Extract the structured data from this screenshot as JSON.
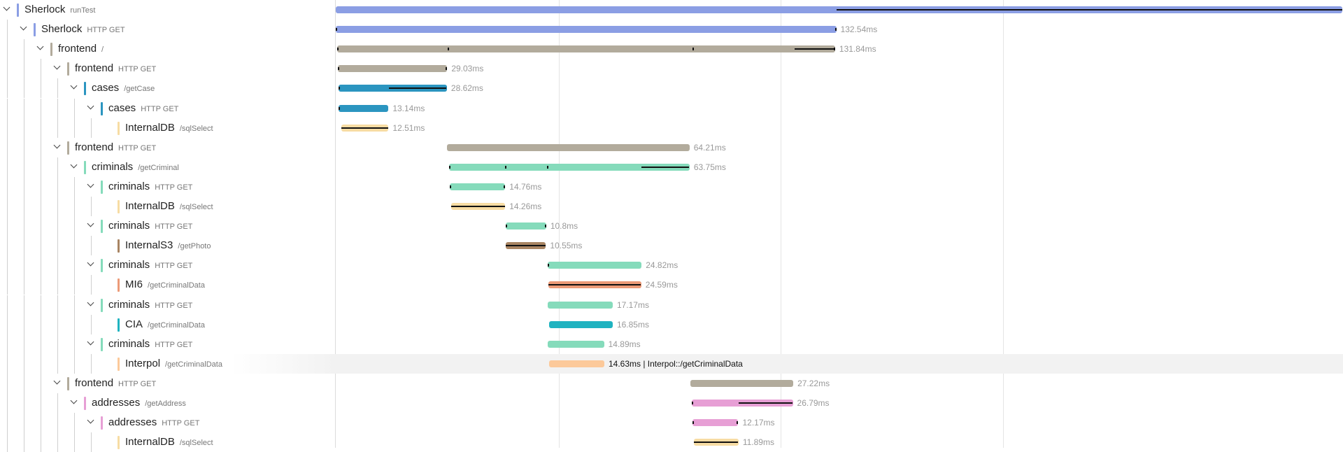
{
  "timeline": {
    "total_ms": 163.73,
    "gridlines_ms": [
      36.15,
      72.29,
      108.43
    ]
  },
  "spans": [
    {
      "service": "Sherlock",
      "operation": "runTest",
      "depth": 0,
      "color": "#8b9ee4",
      "start_ms": 0,
      "duration_ms": 163.73,
      "duration_label": "",
      "critical": [
        [
          81.5,
          163.73
        ]
      ],
      "ticks": []
    },
    {
      "service": "Sherlock",
      "operation": "HTTP GET",
      "depth": 1,
      "color": "#8b9ee4",
      "start_ms": 0,
      "duration_ms": 81.42,
      "duration_label": "132.54ms",
      "critical": [],
      "ticks": [
        0,
        81.4
      ]
    },
    {
      "service": "frontend",
      "operation": "/",
      "depth": 2,
      "color": "#b2ab9c",
      "start_ms": 0.25,
      "duration_ms": 80.98,
      "duration_label": "131.84ms",
      "critical": [
        [
          74.6,
          81.2
        ]
      ],
      "ticks": [
        0.3,
        18.3,
        58.1,
        81.2
      ]
    },
    {
      "service": "frontend",
      "operation": "HTTP GET",
      "depth": 3,
      "color": "#b2ab9c",
      "start_ms": 0.3,
      "duration_ms": 17.83,
      "duration_label": "29.03ms",
      "critical": [],
      "ticks": [
        0.3,
        18.1
      ]
    },
    {
      "service": "cases",
      "operation": "/getCase",
      "depth": 4,
      "color": "#2b95c0",
      "start_ms": 0.5,
      "duration_ms": 17.58,
      "duration_label": "28.62ms",
      "critical": [
        [
          8.6,
          18.0
        ]
      ],
      "ticks": [
        0.5
      ]
    },
    {
      "service": "cases",
      "operation": "HTTP GET",
      "depth": 5,
      "color": "#2b95c0",
      "start_ms": 0.5,
      "duration_ms": 8.07,
      "duration_label": "13.14ms",
      "critical": [],
      "ticks": [
        0.5
      ]
    },
    {
      "service": "InternalDB",
      "operation": "/sqlSelect",
      "depth": 6,
      "color": "#f7dca3",
      "start_ms": 0.9,
      "duration_ms": 7.68,
      "duration_label": "12.51ms",
      "critical": [
        [
          0.9,
          8.5
        ]
      ],
      "ticks": []
    },
    {
      "service": "frontend",
      "operation": "HTTP GET",
      "depth": 3,
      "color": "#b2ab9c",
      "start_ms": 18.1,
      "duration_ms": 39.44,
      "duration_label": "64.21ms",
      "critical": [],
      "ticks": []
    },
    {
      "service": "criminals",
      "operation": "/getCriminal",
      "depth": 4,
      "color": "#85dbbb",
      "start_ms": 18.4,
      "duration_ms": 39.16,
      "duration_label": "63.75ms",
      "critical": [
        [
          49.7,
          57.5
        ]
      ],
      "ticks": [
        18.4,
        27.6,
        34.5
      ]
    },
    {
      "service": "criminals",
      "operation": "HTTP GET",
      "depth": 5,
      "color": "#85dbbb",
      "start_ms": 18.5,
      "duration_ms": 9.07,
      "duration_label": "14.76ms",
      "critical": [],
      "ticks": [
        18.5,
        27.5
      ]
    },
    {
      "service": "InternalDB",
      "operation": "/sqlSelect",
      "depth": 6,
      "color": "#f7dca3",
      "start_ms": 18.8,
      "duration_ms": 8.76,
      "duration_label": "14.26ms",
      "critical": [
        [
          18.8,
          27.5
        ]
      ],
      "ticks": []
    },
    {
      "service": "criminals",
      "operation": "HTTP GET",
      "depth": 5,
      "color": "#85dbbb",
      "start_ms": 27.6,
      "duration_ms": 6.63,
      "duration_label": "10.8ms",
      "critical": [],
      "ticks": [
        27.6,
        34.2
      ]
    },
    {
      "service": "InternalS3",
      "operation": "/getPhoto",
      "depth": 6,
      "color": "#a88462",
      "start_ms": 27.7,
      "duration_ms": 6.48,
      "duration_label": "10.55ms",
      "critical": [
        [
          27.7,
          34.1
        ]
      ],
      "ticks": []
    },
    {
      "service": "criminals",
      "operation": "HTTP GET",
      "depth": 5,
      "color": "#85dbbb",
      "start_ms": 34.5,
      "duration_ms": 15.25,
      "duration_label": "24.82ms",
      "critical": [],
      "ticks": [
        34.5
      ]
    },
    {
      "service": "MI6",
      "operation": "/getCriminalData",
      "depth": 6,
      "color": "#ec9a77",
      "start_ms": 34.6,
      "duration_ms": 15.1,
      "duration_label": "24.59ms",
      "critical": [
        [
          34.6,
          49.6
        ]
      ],
      "ticks": []
    },
    {
      "service": "criminals",
      "operation": "HTTP GET",
      "depth": 5,
      "color": "#85dbbb",
      "start_ms": 34.5,
      "duration_ms": 10.55,
      "duration_label": "17.17ms",
      "critical": [],
      "ticks": []
    },
    {
      "service": "CIA",
      "operation": "/getCriminalData",
      "depth": 6,
      "color": "#1fb3c0",
      "start_ms": 34.7,
      "duration_ms": 10.35,
      "duration_label": "16.85ms",
      "critical": [],
      "ticks": []
    },
    {
      "service": "criminals",
      "operation": "HTTP GET",
      "depth": 5,
      "color": "#85dbbb",
      "start_ms": 34.5,
      "duration_ms": 9.15,
      "duration_label": "14.89ms",
      "critical": [],
      "ticks": []
    },
    {
      "service": "Interpol",
      "operation": "/getCriminalData",
      "depth": 6,
      "color": "#fcc99a",
      "start_ms": 34.7,
      "duration_ms": 8.99,
      "duration_label": "14.63ms | Interpol::/getCriminalData",
      "critical": [],
      "ticks": [],
      "highlighted": true
    },
    {
      "service": "frontend",
      "operation": "HTTP GET",
      "depth": 3,
      "color": "#b2ab9c",
      "start_ms": 57.7,
      "duration_ms": 16.72,
      "duration_label": "27.22ms",
      "critical": [],
      "ticks": []
    },
    {
      "service": "addresses",
      "operation": "/getAddress",
      "depth": 4,
      "color": "#e79fd5",
      "start_ms": 57.9,
      "duration_ms": 16.46,
      "duration_label": "26.79ms",
      "critical": [
        [
          65.5,
          74.3
        ]
      ],
      "ticks": [
        57.9
      ]
    },
    {
      "service": "addresses",
      "operation": "HTTP GET",
      "depth": 5,
      "color": "#e79fd5",
      "start_ms": 58.0,
      "duration_ms": 7.48,
      "duration_label": "12.17ms",
      "critical": [],
      "ticks": [
        58.0,
        65.4
      ]
    },
    {
      "service": "InternalDB",
      "operation": "/sqlSelect",
      "depth": 6,
      "color": "#f7dca3",
      "start_ms": 58.2,
      "duration_ms": 7.32,
      "duration_label": "11.89ms",
      "critical": [
        [
          58.2,
          65.4
        ]
      ],
      "ticks": []
    }
  ]
}
